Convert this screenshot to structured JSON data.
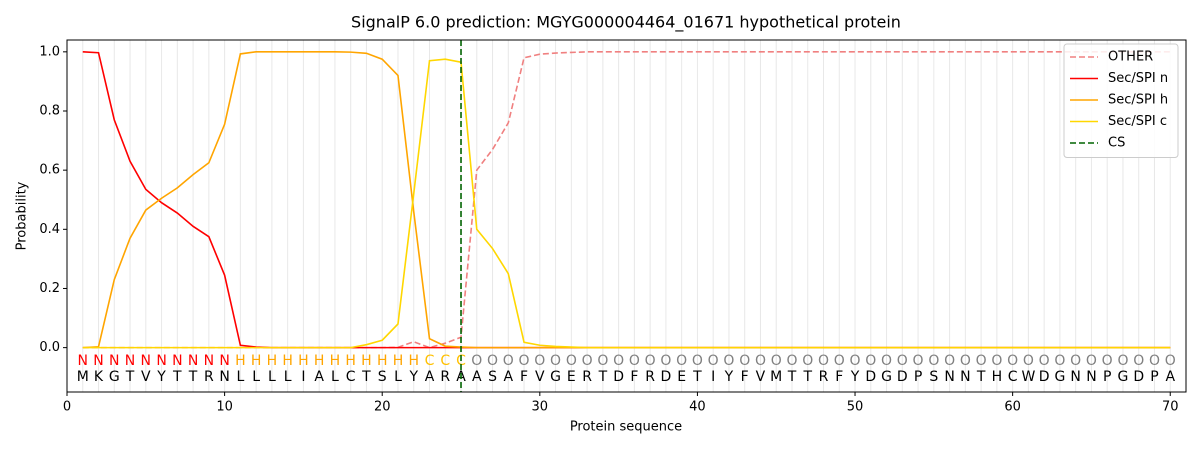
{
  "chart_data": {
    "type": "line",
    "title": "SignalP 6.0 prediction: MGYG000004464_01671 hypothetical protein",
    "xlabel": "Protein sequence",
    "ylabel": "Probability",
    "x": [
      1,
      2,
      3,
      4,
      5,
      6,
      7,
      8,
      9,
      10,
      11,
      12,
      13,
      14,
      15,
      16,
      17,
      18,
      19,
      20,
      21,
      22,
      23,
      24,
      25,
      26,
      27,
      28,
      29,
      30,
      31,
      32,
      33,
      34,
      35,
      36,
      37,
      38,
      39,
      40,
      41,
      42,
      43,
      44,
      45,
      46,
      47,
      48,
      49,
      50,
      51,
      52,
      53,
      54,
      55,
      56,
      57,
      58,
      59,
      60,
      61,
      62,
      63,
      64,
      65,
      66,
      67,
      68,
      69,
      70
    ],
    "sequence": [
      "M",
      "K",
      "G",
      "T",
      "V",
      "Y",
      "T",
      "T",
      "R",
      "N",
      "L",
      "L",
      "L",
      "L",
      "I",
      "A",
      "L",
      "C",
      "T",
      "S",
      "L",
      "Y",
      "A",
      "R",
      "A",
      "A",
      "S",
      "A",
      "F",
      "V",
      "G",
      "E",
      "R",
      "T",
      "D",
      "F",
      "R",
      "D",
      "E",
      "T",
      "I",
      "Y",
      "F",
      "V",
      "M",
      "T",
      "T",
      "R",
      "F",
      "Y",
      "D",
      "G",
      "D",
      "P",
      "S",
      "N",
      "N",
      "T",
      "H",
      "C",
      "W",
      "D",
      "G",
      "N",
      "N",
      "P",
      "G",
      "D",
      "P",
      "A"
    ],
    "region_labels": [
      "N",
      "N",
      "N",
      "N",
      "N",
      "N",
      "N",
      "N",
      "N",
      "N",
      "H",
      "H",
      "H",
      "H",
      "H",
      "H",
      "H",
      "H",
      "H",
      "H",
      "H",
      "H",
      "C",
      "C",
      "C",
      "O",
      "O",
      "O",
      "O",
      "O",
      "O",
      "O",
      "O",
      "O",
      "O",
      "O",
      "O",
      "O",
      "O",
      "O",
      "O",
      "O",
      "O",
      "O",
      "O",
      "O",
      "O",
      "O",
      "O",
      "O",
      "O",
      "O",
      "O",
      "O",
      "O",
      "O",
      "O",
      "O",
      "O",
      "O",
      "O",
      "O",
      "O",
      "O",
      "O",
      "O",
      "O",
      "O",
      "O",
      "O"
    ],
    "region_colors": {
      "N": "#ff0000",
      "H": "#ffa500",
      "C": "#ffc000",
      "O": "#808080"
    },
    "series": [
      {
        "name": "OTHER",
        "color": "#f08080",
        "style": "dashed",
        "values": [
          0,
          0,
          0,
          0,
          0,
          0,
          0,
          0,
          0,
          0,
          0,
          0,
          0,
          0,
          0,
          0,
          0,
          0,
          0,
          0,
          0.001,
          0.02,
          0.0,
          0.015,
          0.035,
          0.6,
          0.67,
          0.76,
          0.98,
          0.992,
          0.996,
          0.998,
          1,
          1,
          1,
          1,
          1,
          1,
          1,
          1,
          1,
          1,
          1,
          1,
          1,
          1,
          1,
          1,
          1,
          1,
          1,
          1,
          1,
          1,
          1,
          1,
          1,
          1,
          1,
          1,
          1,
          1,
          1,
          1,
          1,
          1,
          1,
          1,
          1,
          1
        ]
      },
      {
        "name": "Sec/SPI n",
        "color": "#ff0000",
        "style": "solid",
        "values": [
          1.0,
          0.997,
          0.77,
          0.63,
          0.535,
          0.49,
          0.455,
          0.41,
          0.375,
          0.245,
          0.008,
          0.002,
          0,
          0,
          0,
          0,
          0,
          0,
          0,
          0,
          0,
          0,
          0,
          0,
          0,
          0,
          0,
          0,
          0,
          0,
          0,
          0,
          0,
          0,
          0,
          0,
          0,
          0,
          0,
          0,
          0,
          0,
          0,
          0,
          0,
          0,
          0,
          0,
          0,
          0,
          0,
          0,
          0,
          0,
          0,
          0,
          0,
          0,
          0,
          0,
          0,
          0,
          0,
          0,
          0,
          0,
          0,
          0,
          0,
          0
        ]
      },
      {
        "name": "Sec/SPI h",
        "color": "#ffa500",
        "style": "solid",
        "values": [
          0,
          0.003,
          0.23,
          0.37,
          0.465,
          0.505,
          0.54,
          0.585,
          0.625,
          0.755,
          0.993,
          1.0,
          1.0,
          1.0,
          1.0,
          1.0,
          1.0,
          0.999,
          0.995,
          0.975,
          0.92,
          0.46,
          0.03,
          0.005,
          0.002,
          0,
          0,
          0,
          0,
          0,
          0,
          0,
          0,
          0,
          0,
          0,
          0,
          0,
          0,
          0,
          0,
          0,
          0,
          0,
          0,
          0,
          0,
          0,
          0,
          0,
          0,
          0,
          0,
          0,
          0,
          0,
          0,
          0,
          0,
          0,
          0,
          0,
          0,
          0,
          0,
          0,
          0,
          0,
          0,
          0
        ]
      },
      {
        "name": "Sec/SPI c",
        "color": "#ffd700",
        "style": "solid",
        "values": [
          0,
          0,
          0,
          0,
          0,
          0,
          0,
          0,
          0,
          0,
          0,
          0,
          0,
          0,
          0,
          0,
          0,
          0,
          0.01,
          0.025,
          0.08,
          0.52,
          0.97,
          0.975,
          0.965,
          0.4,
          0.335,
          0.25,
          0.018,
          0.008,
          0.004,
          0.002,
          0,
          0,
          0,
          0,
          0,
          0,
          0,
          0,
          0,
          0,
          0,
          0,
          0,
          0,
          0,
          0,
          0,
          0,
          0,
          0,
          0,
          0,
          0,
          0,
          0,
          0,
          0,
          0,
          0,
          0,
          0,
          0,
          0,
          0,
          0,
          0,
          0,
          0
        ]
      }
    ],
    "vlines": [
      {
        "name": "CS",
        "x": 25,
        "color": "#006400",
        "style": "dashed"
      }
    ],
    "xlim": [
      0,
      71
    ],
    "ylim": [
      -0.15,
      1.04
    ],
    "xticks": [
      0,
      10,
      20,
      30,
      40,
      50,
      60,
      70
    ],
    "yticks": [
      {
        "value": 0,
        "label": "0.0"
      },
      {
        "value": 0.2,
        "label": "0.2"
      },
      {
        "value": 0.4,
        "label": "0.4"
      },
      {
        "value": 0.6,
        "label": "0.6"
      },
      {
        "value": 0.8,
        "label": "0.8"
      },
      {
        "value": 1.0,
        "label": "1.0"
      }
    ],
    "legend": "upper right"
  }
}
